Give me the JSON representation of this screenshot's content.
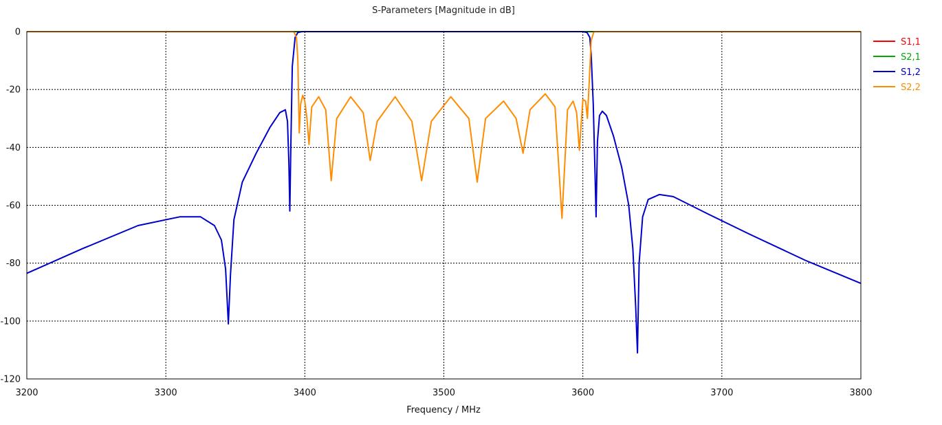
{
  "chart_data": {
    "type": "line",
    "title": "S-Parameters [Magnitude in dB]",
    "xlabel": "Frequency / MHz",
    "ylabel": "",
    "xlim": [
      3200,
      3800
    ],
    "ylim": [
      -120,
      0
    ],
    "x_ticks": [
      "3200",
      "3300",
      "3400",
      "3500",
      "3600",
      "3700",
      "3800"
    ],
    "y_ticks": [
      "0",
      "-20",
      "-40",
      "-60",
      "-80",
      "-100",
      "-120"
    ],
    "grid": true,
    "legend_position": "right",
    "series": [
      {
        "name": "S1,1",
        "color": "#ff0000",
        "x": [
          3200,
          3800
        ],
        "y": [
          0,
          0
        ]
      },
      {
        "name": "S2,1",
        "color": "#00aa00",
        "x": [
          3200,
          3800
        ],
        "y": [
          0,
          0
        ]
      },
      {
        "name": "S1,2",
        "color": "#0000cc",
        "x": [
          3200,
          3240,
          3280,
          3310,
          3325,
          3335,
          3340,
          3343,
          3345,
          3346.5,
          3349,
          3355,
          3365,
          3375,
          3382,
          3386,
          3387.5,
          3388.5,
          3389.2,
          3390,
          3391,
          3393,
          3395,
          3398,
          3405,
          3600,
          3603,
          3605,
          3606,
          3607.5,
          3608.8,
          3609.5,
          3610.5,
          3612,
          3614,
          3617,
          3622,
          3628,
          3633,
          3636,
          3638,
          3639.3,
          3640.5,
          3643,
          3647,
          3655,
          3665,
          3690,
          3720,
          3760,
          3800
        ],
        "y": [
          -83.5,
          -75,
          -67,
          -64,
          -64,
          -67,
          -72,
          -82,
          -101,
          -84,
          -65,
          -52,
          -42,
          -33,
          -28,
          -27,
          -31,
          -45,
          -62,
          -38,
          -12,
          -2,
          -0.3,
          0,
          0,
          0,
          -0.3,
          -2,
          -8,
          -25,
          -50,
          -64,
          -38,
          -29,
          -27.5,
          -29,
          -36,
          -47,
          -60,
          -75,
          -95,
          -111,
          -80,
          -64,
          -58,
          -56.3,
          -57,
          -63,
          -70,
          -79,
          -87
        ]
      },
      {
        "name": "S2,2",
        "color": "#ff8c00",
        "x": [
          3200,
          3392,
          3394,
          3395,
          3396,
          3397,
          3398.5,
          3400,
          3401.5,
          3403,
          3405,
          3410,
          3415,
          3419,
          3423,
          3433,
          3442,
          3447,
          3452,
          3465,
          3477,
          3484,
          3491,
          3505,
          3518,
          3524,
          3530,
          3543,
          3552,
          3557,
          3562,
          3573,
          3580,
          3585,
          3589,
          3593,
          3595.5,
          3597.5,
          3600,
          3602,
          3603.3,
          3604.5,
          3606,
          3608,
          3800
        ],
        "y": [
          0,
          0,
          -2,
          -10,
          -35,
          -25,
          -22,
          -24,
          -30,
          -39,
          -26,
          -22.5,
          -27,
          -51.5,
          -30,
          -22.5,
          -28,
          -44.5,
          -31,
          -22.5,
          -31,
          -51.5,
          -31,
          -22.5,
          -30,
          -52,
          -30,
          -24,
          -30,
          -42,
          -27,
          -21.5,
          -26,
          -64.5,
          -27,
          -24,
          -28,
          -41,
          -23.5,
          -24,
          -30,
          -18,
          -3,
          0,
          0
        ]
      }
    ]
  }
}
